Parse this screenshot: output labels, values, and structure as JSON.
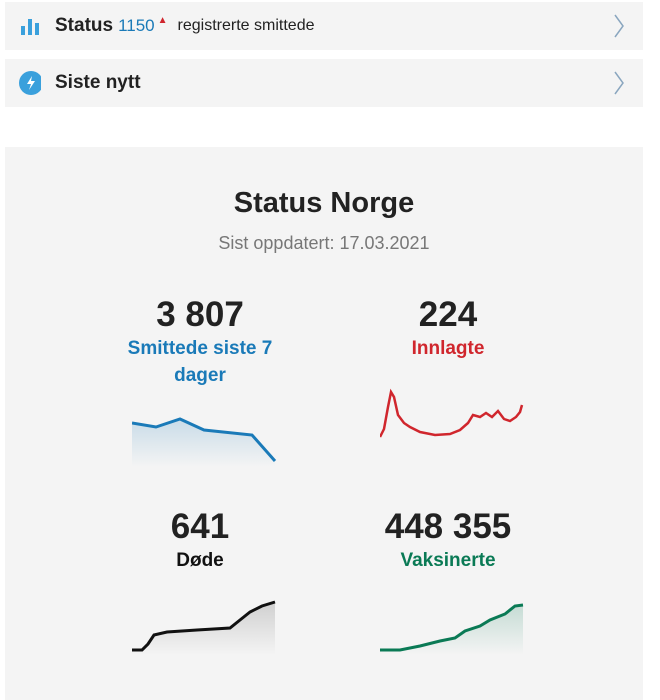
{
  "top_links": [
    {
      "label": "Status",
      "count": "1150",
      "trend_icon": "triangle-up-icon",
      "text": "registrerte smittede",
      "icon": "bar-chart-icon"
    },
    {
      "label": "Siste nytt",
      "icon": "lightning-icon"
    }
  ],
  "status": {
    "title": "Status Norge",
    "updated": "Sist oppdatert: 17.03.2021",
    "stats": [
      {
        "value": "3 807",
        "label": "Smittede siste 7 dager",
        "color": "#1a7ab8"
      },
      {
        "value": "224",
        "label": "Innlagte",
        "color": "#d0262d"
      },
      {
        "value": "641",
        "label": "Døde",
        "color": "#111111"
      },
      {
        "value": "448 355",
        "label": "Vaksinerte",
        "color": "#0a7a55"
      }
    ]
  }
}
